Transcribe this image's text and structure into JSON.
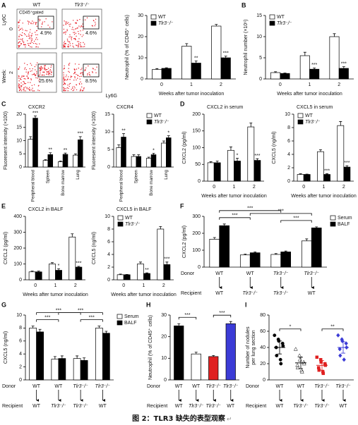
{
  "chart_data": [
    {
      "type": "flow",
      "panel": "A",
      "columns": [
        "WT",
        "Tlr3⁻/⁻"
      ],
      "gate_label": "CD45⁺gated",
      "row_title": "Week:",
      "rows": [
        "0",
        "2"
      ],
      "ylabel": "Ly6C",
      "xlabel": "Ly6G",
      "percent": [
        [
          4.9,
          4.6
        ],
        [
          25.6,
          8.5
        ]
      ],
      "value_labels": [
        [
          "4.9%",
          "4.6%"
        ],
        [
          "25.6%",
          "8.5%"
        ]
      ],
      "color": "#e8202a",
      "label_color": "#2a6fc9"
    },
    {
      "type": "bar",
      "ylabel": "Neutrophil (% of CD45⁺ cells)",
      "xlabel": "Weeks after tumor inoculation",
      "categories": [
        "0",
        "1",
        "2"
      ],
      "series": [
        {
          "name": "WT",
          "color": "#ffffff",
          "values": [
            4.5,
            15.5,
            25
          ],
          "errors": [
            0.4,
            1.2,
            0.8
          ]
        },
        {
          "name": "Tlr3⁻/⁻",
          "color": "#000000",
          "values": [
            5,
            7.5,
            10
          ],
          "errors": [
            0.3,
            1,
            0.8
          ],
          "stars": [
            null,
            "**",
            "***"
          ]
        }
      ],
      "ylim": [
        0,
        30
      ],
      "yticks": [
        0,
        10,
        20,
        30
      ],
      "legend": "top-left"
    },
    {
      "type": "bar",
      "panel": "B",
      "ylabel": "Neutrophil number (×10⁶)",
      "xlabel": "Weeks after tumor inoculation",
      "categories": [
        "0",
        "1",
        "2"
      ],
      "series": [
        {
          "name": "WT",
          "color": "#ffffff",
          "values": [
            1.5,
            5.5,
            10
          ],
          "errors": [
            0.2,
            0.8,
            0.7
          ]
        },
        {
          "name": "Tlr3⁻/⁻",
          "color": "#000000",
          "values": [
            1.3,
            2.3,
            2.5
          ],
          "errors": [
            0.1,
            0.3,
            0.4
          ],
          "stars": [
            null,
            "***",
            "***"
          ]
        }
      ],
      "ylim": [
        0,
        15
      ],
      "yticks": [
        0,
        5,
        10,
        15
      ],
      "legend": "top-left"
    },
    {
      "type": "bar",
      "panel": "C",
      "title": "CXCR2",
      "ylabel": "Fluoresent intensity (×100)",
      "categories": [
        "Peripheral blood",
        "Spleen",
        "Bone marrow",
        "Lung"
      ],
      "rotate_labels": true,
      "series": [
        {
          "name": "WT",
          "color": "#ffffff",
          "values": [
            10.5,
            2.5,
            2,
            4.5
          ],
          "errors": [
            1,
            0.3,
            0.3,
            0.5
          ]
        },
        {
          "name": "Tlr3⁻/⁻",
          "color": "#000000",
          "values": [
            18.5,
            4.7,
            4.8,
            10.3
          ],
          "errors": [
            0.8,
            0.7,
            0.5,
            1.2
          ],
          "stars": [
            "***",
            "**",
            "**",
            "***"
          ]
        }
      ],
      "ylim": [
        0,
        20
      ],
      "yticks": [
        0,
        5,
        10,
        15,
        20
      ]
    },
    {
      "type": "bar",
      "title": "CXCR4",
      "ylabel": "Fluoresent intensity (×100)",
      "categories": [
        "Peripheral blood",
        "Spleen",
        "Bone marrow",
        "Lung"
      ],
      "rotate_labels": true,
      "series": [
        {
          "name": "WT",
          "color": "#ffffff",
          "values": [
            5.5,
            3,
            2.5,
            6.8
          ],
          "errors": [
            0.8,
            0.5,
            0.3,
            0.6
          ]
        },
        {
          "name": "Tlr3⁻/⁻",
          "color": "#000000",
          "values": [
            8.5,
            3,
            3.5,
            8.3
          ],
          "errors": [
            1,
            0.5,
            0.4,
            0.6
          ],
          "stars": [
            "**",
            null,
            "*",
            "*"
          ]
        }
      ],
      "ylim": [
        0,
        15
      ],
      "yticks": [
        0,
        5,
        10,
        15
      ],
      "legend": "top-right"
    },
    {
      "type": "bar",
      "panel": "D",
      "title": "CXCL2 in serum",
      "ylabel": "CXCL2 (pg/ml)",
      "xlabel": "Weeks after tumor inoculation",
      "categories": [
        "0",
        "1",
        "2"
      ],
      "series": [
        {
          "name": "WT",
          "color": "#ffffff",
          "values": [
            55,
            92,
            162
          ],
          "errors": [
            3,
            10,
            12
          ]
        },
        {
          "name": "Tlr3⁻/⁻",
          "color": "#000000",
          "values": [
            55,
            60,
            62
          ],
          "errors": [
            5,
            8,
            5
          ],
          "stars": [
            null,
            "*",
            "***"
          ]
        }
      ],
      "ylim": [
        0,
        200
      ],
      "yticks": [
        0,
        50,
        100,
        150,
        200
      ]
    },
    {
      "type": "bar",
      "title": "CXCL5 in serum",
      "ylabel": "CXCL5 (ng/ml)",
      "xlabel": "Weeks after tumor inoculation",
      "categories": [
        "0",
        "1",
        "2"
      ],
      "series": [
        {
          "name": "WT",
          "color": "#ffffff",
          "values": [
            1,
            4.4,
            8.3
          ],
          "errors": [
            0.1,
            0.3,
            0.6
          ]
        },
        {
          "name": "Tlr3⁻/⁻",
          "color": "#000000",
          "values": [
            1,
            1,
            2.1
          ],
          "errors": [
            0.05,
            0.1,
            0.2
          ],
          "stars": [
            null,
            "***",
            "***"
          ]
        }
      ],
      "ylim": [
        0,
        10
      ],
      "yticks": [
        0,
        2,
        4,
        6,
        8,
        10
      ],
      "legend": "top-left"
    },
    {
      "type": "bar",
      "panel": "E",
      "title": "CXCL2 in BALF",
      "ylabel": "CXCL2 (pg/ml)",
      "xlabel": "Weeks after tumor inoculation",
      "categories": [
        "0",
        "1",
        "2"
      ],
      "series": [
        {
          "name": "WT",
          "color": "#ffffff",
          "values": [
            50,
            100,
            270
          ],
          "errors": [
            5,
            8,
            20
          ]
        },
        {
          "name": "Tlr3⁻/⁻",
          "color": "#000000",
          "values": [
            50,
            60,
            80
          ],
          "errors": [
            5,
            10,
            5
          ],
          "stars": [
            null,
            "*",
            "***"
          ]
        }
      ],
      "ylim": [
        0,
        400
      ],
      "yticks": [
        0,
        100,
        200,
        300,
        400
      ]
    },
    {
      "type": "bar",
      "title": "CXCL5 in BALF",
      "ylabel": "CXCL5 (ng/ml)",
      "xlabel": "Weeks after tumor inoculation",
      "categories": [
        "0",
        "1",
        "2"
      ],
      "series": [
        {
          "name": "WT",
          "color": "#ffffff",
          "values": [
            0.8,
            2.5,
            8
          ],
          "errors": [
            0.1,
            0.3,
            0.4
          ]
        },
        {
          "name": "Tlr3⁻/⁻",
          "color": "#000000",
          "values": [
            0.8,
            1,
            2.4
          ],
          "errors": [
            0.05,
            0.1,
            0.4
          ],
          "stars": [
            null,
            "**",
            "***"
          ]
        }
      ],
      "ylim": [
        0,
        10
      ],
      "yticks": [
        0,
        2,
        4,
        6,
        8,
        10
      ],
      "legend": "top-left"
    },
    {
      "type": "bar",
      "panel": "F",
      "ylabel": "CXCL2 (pg/ml)",
      "donor_label": "Donor",
      "recipient_label": "Recipient",
      "donor": [
        "WT",
        "WT",
        "Tlr3⁻/⁻",
        "Tlr3⁻/⁻"
      ],
      "recipient": [
        "WT",
        "Tlr3⁻/⁻",
        "Tlr3⁻/⁻",
        "WT"
      ],
      "series": [
        {
          "name": "Serum",
          "color": "#ffffff",
          "values": [
            165,
            72,
            75,
            155
          ],
          "errors": [
            10,
            5,
            5,
            12
          ]
        },
        {
          "name": "BALF",
          "color": "#000000",
          "values": [
            245,
            85,
            90,
            232
          ],
          "errors": [
            10,
            5,
            5,
            6
          ]
        }
      ],
      "comparisons": [
        {
          "groups": [
            0,
            1
          ],
          "label": "***"
        },
        {
          "groups": [
            0,
            2
          ],
          "label": "***"
        },
        {
          "groups": [
            2,
            3
          ],
          "label": "***"
        },
        {
          "groups": [
            1,
            3
          ],
          "label": "***"
        }
      ],
      "ylim": [
        0,
        300
      ],
      "yticks": [
        0,
        100,
        200,
        300
      ],
      "legend": "right"
    },
    {
      "type": "bar",
      "panel": "G",
      "ylabel": "CXCL5 (ng/ml)",
      "donor_label": "Donor",
      "recipient_label": "Recipient",
      "donor": [
        "WT",
        "WT",
        "Tlr3⁻/⁻",
        "Tlr3⁻/⁻"
      ],
      "recipient": [
        "WT",
        "Tlr3⁻/⁻",
        "Tlr3⁻/⁻",
        "WT"
      ],
      "series": [
        {
          "name": "Serum",
          "color": "#ffffff",
          "values": [
            8,
            3.2,
            3.3,
            8
          ],
          "errors": [
            0.3,
            0.4,
            0.4,
            0.3
          ]
        },
        {
          "name": "BALF",
          "color": "#000000",
          "values": [
            7.4,
            3.3,
            3,
            7.2
          ],
          "errors": [
            0.4,
            0.4,
            0.4,
            0.3
          ]
        }
      ],
      "comparisons": [
        {
          "groups": [
            0,
            1
          ],
          "label": "***"
        },
        {
          "groups": [
            0,
            2
          ],
          "label": "***"
        },
        {
          "groups": [
            2,
            3
          ],
          "label": "***"
        },
        {
          "groups": [
            1,
            3
          ],
          "label": "***"
        }
      ],
      "ylim": [
        0,
        10
      ],
      "yticks": [
        0,
        2,
        4,
        6,
        8,
        10
      ],
      "legend": "right"
    },
    {
      "type": "bar",
      "panel": "H",
      "ylabel": "Neutrophil (% of CD45⁺ cells)",
      "donor_label": "Donor",
      "recipient_label": "Recipient",
      "donor": [
        "WT",
        "WT",
        "Tlr3⁻/⁻",
        "Tlr3⁻/⁻"
      ],
      "recipient": [
        "WT",
        "Tlr3⁻/⁻",
        "Tlr3⁻/⁻",
        "WT"
      ],
      "series": [
        {
          "colors": [
            "#000000",
            "#ffffff",
            "#e02020",
            "#3b3bd6"
          ],
          "values": [
            25,
            12,
            10.8,
            26
          ],
          "errors": [
            1,
            0.8,
            0.5,
            1
          ]
        }
      ],
      "comparisons": [
        {
          "groups": [
            0,
            1
          ],
          "label": "***"
        },
        {
          "groups": [
            2,
            3
          ],
          "label": "***"
        }
      ],
      "ylim": [
        0,
        30
      ],
      "yticks": [
        0,
        10,
        20,
        30
      ]
    },
    {
      "type": "dot",
      "panel": "I",
      "ylabel": [
        "Number of nodules",
        "per lung section"
      ],
      "donor_label": "Donor",
      "recipient_label": "Recipient",
      "donor": [
        "WT",
        "WT",
        "Tlr3⁻/⁻",
        "Tlr3⁻/⁻"
      ],
      "recipient": [
        "WT",
        "Tlr3⁻/⁻",
        "Tlr3⁻/⁻",
        "WT"
      ],
      "groups": [
        {
          "color": "#000000",
          "marker": "circle",
          "values": [
            55,
            50,
            48,
            45,
            42,
            40,
            30,
            25,
            20
          ],
          "mean": 40,
          "error": 8
        },
        {
          "color": "#ffffff",
          "marker": "triangle",
          "values": [
            38,
            30,
            25,
            22,
            20,
            18,
            15,
            12,
            10
          ],
          "mean": 21,
          "error": 7
        },
        {
          "color": "#e02020",
          "marker": "square",
          "values": [
            28,
            25,
            22,
            20,
            18,
            15,
            12,
            10,
            8
          ],
          "mean": 18,
          "error": 6
        },
        {
          "color": "#3b3bd6",
          "marker": "diamond",
          "values": [
            55,
            50,
            48,
            45,
            40,
            38,
            30,
            25
          ],
          "mean": 40,
          "error": 7
        }
      ],
      "comparisons": [
        {
          "groups": [
            0,
            1
          ],
          "label": "*"
        },
        {
          "groups": [
            2,
            3
          ],
          "label": "**"
        }
      ],
      "ylim": [
        0,
        80
      ],
      "yticks": [
        0,
        20,
        40,
        60,
        80
      ]
    }
  ],
  "caption": "图 2：TLR3 缺失的表型观察",
  "caption_mark": "↵"
}
